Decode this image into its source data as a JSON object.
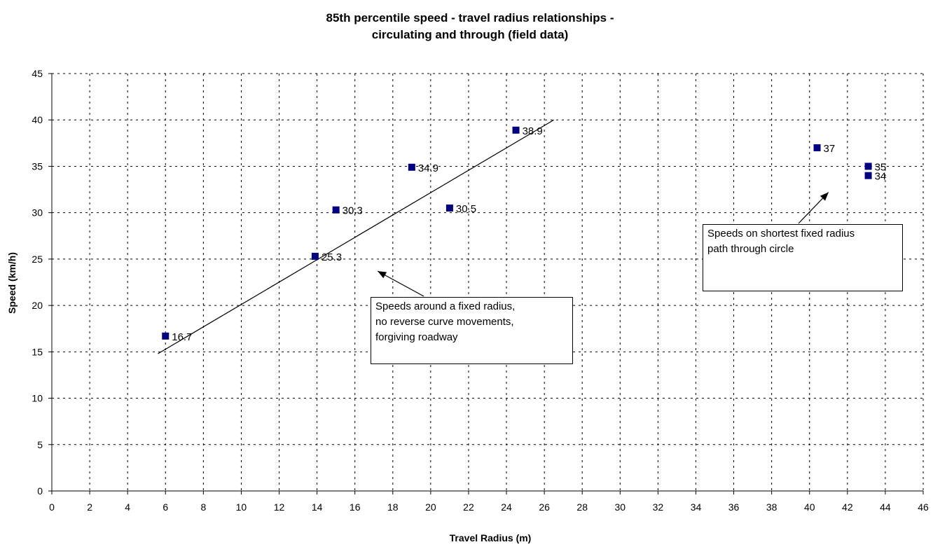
{
  "chart_data": {
    "type": "scatter",
    "title_line1": "85th percentile speed - travel radius relationships -",
    "title_line2": "circulating and through (field data)",
    "xlabel": "Travel Radius (m)",
    "ylabel": "Speed (km/h)",
    "xlim": [
      0,
      46
    ],
    "ylim": [
      0,
      45
    ],
    "xticks": [
      0,
      2,
      4,
      6,
      8,
      10,
      12,
      14,
      16,
      18,
      20,
      22,
      24,
      26,
      28,
      30,
      32,
      34,
      36,
      38,
      40,
      42,
      44,
      46
    ],
    "yticks": [
      0,
      5,
      10,
      15,
      20,
      25,
      30,
      35,
      40,
      45
    ],
    "grid": true,
    "marker_color": "#000080",
    "points": [
      {
        "x": 6,
        "y": 16.7,
        "label": "16.7"
      },
      {
        "x": 13.9,
        "y": 25.3,
        "label": "25.3"
      },
      {
        "x": 15,
        "y": 30.3,
        "label": "30.3"
      },
      {
        "x": 19,
        "y": 34.9,
        "label": "34.9"
      },
      {
        "x": 21,
        "y": 30.5,
        "label": "30.5"
      },
      {
        "x": 24.5,
        "y": 38.9,
        "label": "38.9"
      },
      {
        "x": 40.4,
        "y": 37,
        "label": "37"
      },
      {
        "x": 43.1,
        "y": 35,
        "label": "35"
      },
      {
        "x": 43.1,
        "y": 34,
        "label": "34"
      }
    ],
    "trendline": {
      "x": [
        5.6,
        26.5
      ],
      "y": [
        14.8,
        40.0
      ]
    },
    "annotations": [
      {
        "text_lines": [
          "Speeds around a fixed radius,",
          "no reverse curve movements,",
          "forgiving roadway"
        ],
        "arrow_to": {
          "x": 17.2,
          "y": 23.7
        }
      },
      {
        "text_lines": [
          "Speeds on shortest fixed radius",
          "path through circle"
        ],
        "arrow_to": {
          "x": 41.0,
          "y": 32.2
        }
      }
    ]
  }
}
